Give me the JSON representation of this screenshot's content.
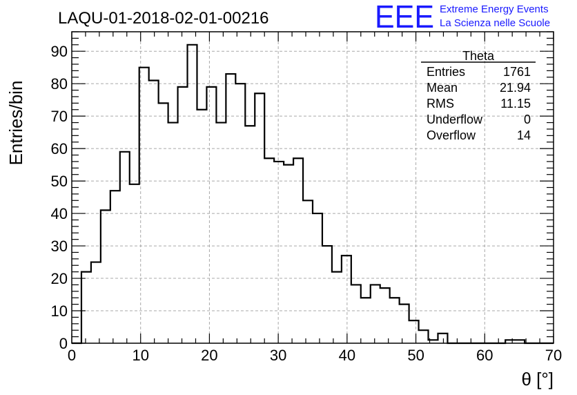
{
  "chart_data": {
    "type": "bar",
    "title": "LAQU-01-2018-02-01-00216",
    "xlabel": "θ [°]",
    "ylabel": "Entries/bin",
    "xlim": [
      0,
      70
    ],
    "ylim": [
      0,
      96
    ],
    "xticks": [
      "0",
      "10",
      "20",
      "30",
      "40",
      "50",
      "60",
      "70"
    ],
    "yticks": [
      "0",
      "10",
      "20",
      "30",
      "40",
      "50",
      "60",
      "70",
      "80",
      "90"
    ],
    "grid": true,
    "bin_start": 0,
    "bin_width": 1.4,
    "values": [
      0,
      22,
      25,
      41,
      47,
      59,
      49,
      85,
      81,
      74,
      68,
      79,
      92,
      72,
      79,
      68,
      83,
      80,
      67,
      77,
      57,
      56,
      55,
      57,
      44,
      40,
      30,
      22,
      27,
      18,
      14,
      18,
      17,
      14,
      12,
      7,
      4,
      1,
      3,
      0,
      0,
      0,
      0,
      0,
      0,
      1,
      1,
      0,
      0,
      0
    ],
    "stats_box": {
      "name": "Theta",
      "rows": [
        {
          "label": "Entries",
          "value": "1761"
        },
        {
          "label": "Mean",
          "value": "21.94"
        },
        {
          "label": "RMS",
          "value": "11.15"
        },
        {
          "label": "Underflow",
          "value": "0"
        },
        {
          "label": "Overflow",
          "value": "14"
        }
      ]
    }
  },
  "logo": {
    "mark": "EEE",
    "line1": "Extreme Energy Events",
    "line2": "La Scienza nelle Scuole",
    "color": "#1a1aff"
  }
}
